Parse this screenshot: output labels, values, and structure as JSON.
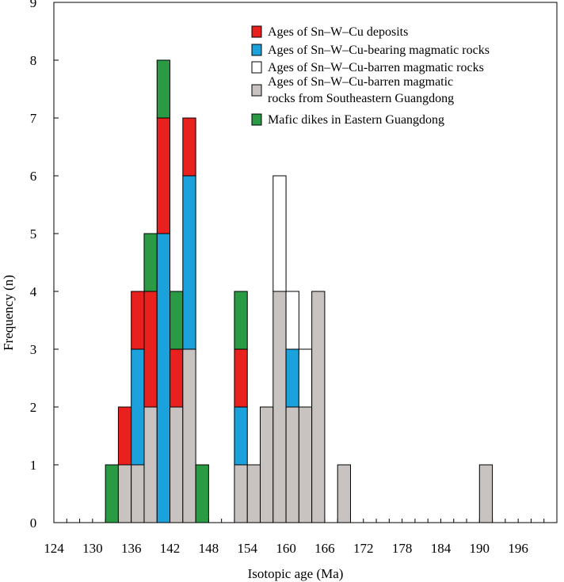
{
  "chart_data": {
    "type": "bar",
    "stacked": true,
    "xlabel": "Isotopic age (Ma)",
    "ylabel": "Frequency (n)",
    "xlim": [
      124,
      202
    ],
    "ylim": [
      0,
      9
    ],
    "bin_width": 2,
    "x_ticks": [
      124,
      130,
      136,
      142,
      148,
      154,
      160,
      166,
      172,
      178,
      184,
      190,
      196
    ],
    "y_ticks": [
      0,
      1,
      2,
      3,
      4,
      5,
      6,
      7,
      8,
      9
    ],
    "colors": {
      "deposits": "#e8211f",
      "bearing": "#1ba1dc",
      "barren": "#ffffff",
      "barren_se": "#c8c3c0",
      "mafic": "#2a9a45"
    },
    "legend": [
      {
        "key": "deposits",
        "label": "Ages of Sn–W–Cu deposits"
      },
      {
        "key": "bearing",
        "label": "Ages of Sn–W–Cu-bearing magmatic rocks"
      },
      {
        "key": "barren",
        "label": "Ages of Sn–W–Cu-barren magmatic rocks"
      },
      {
        "key": "barren_se",
        "label": "Ages of Sn–W–Cu-barren magmatic",
        "label2": "rocks from Southeastern Guangdong"
      },
      {
        "key": "mafic",
        "label": "Mafic dikes in Eastern Guangdong"
      }
    ],
    "bins": [
      {
        "x0": 132,
        "segments": [
          {
            "key": "mafic",
            "count": 1
          }
        ]
      },
      {
        "x0": 134,
        "segments": [
          {
            "key": "barren_se",
            "count": 1
          },
          {
            "key": "deposits",
            "count": 1
          }
        ]
      },
      {
        "x0": 136,
        "segments": [
          {
            "key": "barren_se",
            "count": 1
          },
          {
            "key": "bearing",
            "count": 2
          },
          {
            "key": "deposits",
            "count": 1
          }
        ]
      },
      {
        "x0": 138,
        "segments": [
          {
            "key": "barren_se",
            "count": 2
          },
          {
            "key": "deposits",
            "count": 2
          },
          {
            "key": "mafic",
            "count": 1
          }
        ]
      },
      {
        "x0": 140,
        "segments": [
          {
            "key": "bearing",
            "count": 5
          },
          {
            "key": "deposits",
            "count": 2
          },
          {
            "key": "mafic",
            "count": 1
          }
        ]
      },
      {
        "x0": 142,
        "segments": [
          {
            "key": "barren_se",
            "count": 2
          },
          {
            "key": "deposits",
            "count": 1
          },
          {
            "key": "mafic",
            "count": 1
          }
        ]
      },
      {
        "x0": 144,
        "segments": [
          {
            "key": "barren_se",
            "count": 3
          },
          {
            "key": "bearing",
            "count": 3
          },
          {
            "key": "deposits",
            "count": 1
          }
        ]
      },
      {
        "x0": 146,
        "segments": [
          {
            "key": "mafic",
            "count": 1
          }
        ]
      },
      {
        "x0": 152,
        "segments": [
          {
            "key": "barren_se",
            "count": 1
          },
          {
            "key": "bearing",
            "count": 1
          },
          {
            "key": "deposits",
            "count": 1
          },
          {
            "key": "mafic",
            "count": 1
          }
        ]
      },
      {
        "x0": 154,
        "segments": [
          {
            "key": "barren_se",
            "count": 1
          }
        ]
      },
      {
        "x0": 156,
        "segments": [
          {
            "key": "barren_se",
            "count": 2
          }
        ]
      },
      {
        "x0": 158,
        "segments": [
          {
            "key": "barren_se",
            "count": 4
          },
          {
            "key": "barren",
            "count": 2
          }
        ]
      },
      {
        "x0": 160,
        "segments": [
          {
            "key": "barren_se",
            "count": 2
          },
          {
            "key": "bearing",
            "count": 1
          },
          {
            "key": "barren",
            "count": 1
          }
        ]
      },
      {
        "x0": 162,
        "segments": [
          {
            "key": "barren_se",
            "count": 2
          },
          {
            "key": "barren",
            "count": 1
          }
        ]
      },
      {
        "x0": 164,
        "segments": [
          {
            "key": "barren_se",
            "count": 4
          }
        ]
      },
      {
        "x0": 168,
        "segments": [
          {
            "key": "barren_se",
            "count": 1
          }
        ]
      },
      {
        "x0": 190,
        "segments": [
          {
            "key": "barren_se",
            "count": 1
          }
        ]
      }
    ]
  }
}
